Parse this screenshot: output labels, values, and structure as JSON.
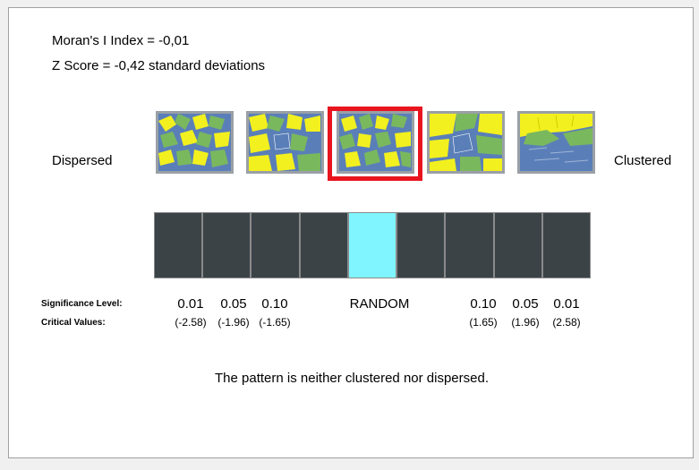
{
  "stats": {
    "moran": "Moran's I Index = -0,01",
    "zscore": "Z Score = -0,42 standard deviations"
  },
  "scale": {
    "left_label": "Dispersed",
    "right_label": "Clustered",
    "patterns": [
      "dispersed-pattern",
      "dispersed-lean-pattern",
      "random-pattern",
      "clustered-lean-pattern",
      "clustered-pattern"
    ],
    "selected_pattern_index": 2,
    "selected_bin_index": 4,
    "bin_count": 9
  },
  "significance": {
    "sig_label": "Significance Level:",
    "crit_label": "Critical Values:",
    "levels": [
      "0.01",
      "0.05",
      "0.10",
      "RANDOM",
      "0.10",
      "0.05",
      "0.01"
    ],
    "critical": [
      "(-2.58)",
      "(-1.96)",
      "(-1.65)",
      "",
      "(1.65)",
      "(1.96)",
      "(2.58)"
    ]
  },
  "result": {
    "verdict": "The pattern is neither clustered nor dispersed."
  },
  "colors": {
    "bin": "#3b4347",
    "bin_active": "#80f5ff",
    "highlight": "#e8141e",
    "pattern_yellow": "#f2f01e",
    "pattern_blue": "#5a7fb8",
    "pattern_green": "#7ab85e"
  }
}
